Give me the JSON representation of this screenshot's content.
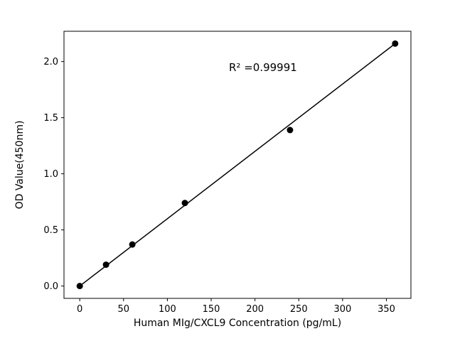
{
  "figure": {
    "background": "#ffffff"
  },
  "chart_data": {
    "type": "scatter",
    "title": "",
    "xlabel": "Human MIg/CXCL9 Concentration (pg/mL)",
    "ylabel": "OD Value(450nm)",
    "annotation": {
      "text": "R² =0.99991",
      "x": 170,
      "y": 1.95
    },
    "x": [
      0,
      30,
      60,
      120,
      240,
      360
    ],
    "y": [
      0.0,
      0.19,
      0.37,
      0.74,
      1.39,
      2.16
    ],
    "fit_line": {
      "x1": 0,
      "y1": 0.0,
      "x2": 360,
      "y2": 2.16
    },
    "xlim": [
      -18,
      378
    ],
    "ylim": [
      -0.11,
      2.27
    ],
    "xticks": [
      0,
      50,
      100,
      150,
      200,
      250,
      300,
      350
    ],
    "xtick_labels": [
      "0",
      "50",
      "100",
      "150",
      "200",
      "250",
      "300",
      "350"
    ],
    "yticks": [
      0.0,
      0.5,
      1.0,
      1.5,
      2.0
    ],
    "ytick_labels": [
      "0.0",
      "0.5",
      "1.0",
      "1.5",
      "2.0"
    ],
    "grid": false,
    "legend": null,
    "marker_color": "#000000",
    "line_color": "#000000",
    "marker_radius": 4.5
  }
}
